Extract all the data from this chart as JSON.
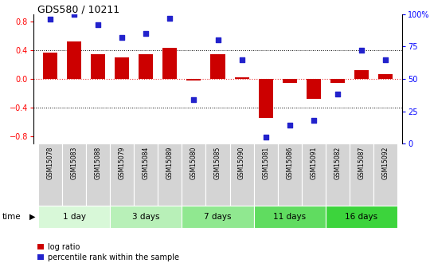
{
  "title": "GDS580 / 10211",
  "samples": [
    "GSM15078",
    "GSM15083",
    "GSM15088",
    "GSM15079",
    "GSM15084",
    "GSM15089",
    "GSM15080",
    "GSM15085",
    "GSM15090",
    "GSM15081",
    "GSM15086",
    "GSM15091",
    "GSM15082",
    "GSM15087",
    "GSM15092"
  ],
  "log_ratio": [
    0.37,
    0.52,
    0.35,
    0.3,
    0.35,
    0.43,
    -0.02,
    0.35,
    0.02,
    -0.54,
    -0.06,
    -0.28,
    -0.05,
    0.12,
    0.07
  ],
  "percentile_rank": [
    96,
    100,
    92,
    82,
    85,
    97,
    34,
    80,
    65,
    5,
    14,
    18,
    38,
    72,
    65
  ],
  "groups": [
    {
      "label": "1 day",
      "start": 0,
      "end": 3,
      "color": "#d8f8d8"
    },
    {
      "label": "3 days",
      "start": 3,
      "end": 6,
      "color": "#b8f0b8"
    },
    {
      "label": "7 days",
      "start": 6,
      "end": 9,
      "color": "#90e890"
    },
    {
      "label": "11 days",
      "start": 9,
      "end": 12,
      "color": "#60dc60"
    },
    {
      "label": "16 days",
      "start": 12,
      "end": 15,
      "color": "#3cd43c"
    }
  ],
  "bar_color": "#cc0000",
  "dot_color": "#2222cc",
  "ylim": [
    -0.9,
    0.9
  ],
  "yticks_left": [
    -0.8,
    -0.4,
    0.0,
    0.4,
    0.8
  ],
  "yticks_right": [
    0,
    25,
    50,
    75,
    100
  ],
  "hline_color": "#ee3333",
  "dotline_values": [
    -0.4,
    0.4
  ],
  "label_log_ratio": "log ratio",
  "label_percentile": "percentile rank within the sample",
  "time_label": "time",
  "sample_bg": "#d4d4d4",
  "sample_border": "#ffffff"
}
